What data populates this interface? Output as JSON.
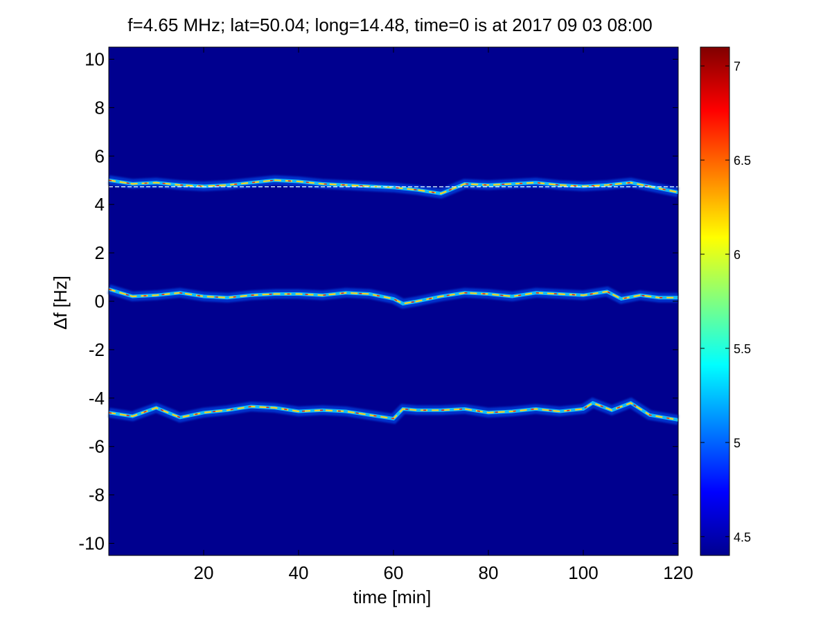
{
  "chart_data": {
    "type": "heatmap",
    "title": "f=4.65 MHz;  lat=50.04; long=14.48, time=0 is at 2017 09 03 08:00",
    "xlabel": "time [min]",
    "ylabel": "Δf [Hz]",
    "xlim": [
      0,
      120
    ],
    "ylim": [
      -10.5,
      10.5
    ],
    "x_ticks": [
      20,
      40,
      60,
      80,
      100,
      120
    ],
    "y_ticks": [
      -10,
      -8,
      -6,
      -4,
      -2,
      0,
      2,
      4,
      6,
      8,
      10
    ],
    "colorbar": {
      "range": [
        4.4,
        7.1
      ],
      "ticks": [
        4.5,
        5,
        5.5,
        6,
        6.5,
        7
      ],
      "colormap": "jet"
    },
    "background_value": 4.4,
    "grid": false,
    "traces": [
      {
        "label": "upper",
        "points": [
          [
            0,
            5.0
          ],
          [
            5,
            4.85
          ],
          [
            10,
            4.9
          ],
          [
            15,
            4.8
          ],
          [
            20,
            4.75
          ],
          [
            25,
            4.8
          ],
          [
            30,
            4.9
          ],
          [
            35,
            5.0
          ],
          [
            40,
            4.95
          ],
          [
            45,
            4.85
          ],
          [
            50,
            4.8
          ],
          [
            55,
            4.75
          ],
          [
            60,
            4.7
          ],
          [
            65,
            4.6
          ],
          [
            70,
            4.45
          ],
          [
            75,
            4.85
          ],
          [
            80,
            4.8
          ],
          [
            85,
            4.85
          ],
          [
            90,
            4.9
          ],
          [
            95,
            4.8
          ],
          [
            100,
            4.75
          ],
          [
            105,
            4.8
          ],
          [
            110,
            4.9
          ],
          [
            115,
            4.7
          ],
          [
            120,
            4.5
          ]
        ],
        "reference_line": 4.73
      },
      {
        "label": "middle",
        "points": [
          [
            0,
            0.5
          ],
          [
            5,
            0.2
          ],
          [
            10,
            0.25
          ],
          [
            15,
            0.35
          ],
          [
            20,
            0.2
          ],
          [
            25,
            0.15
          ],
          [
            30,
            0.25
          ],
          [
            35,
            0.3
          ],
          [
            40,
            0.3
          ],
          [
            45,
            0.25
          ],
          [
            50,
            0.35
          ],
          [
            55,
            0.3
          ],
          [
            60,
            0.1
          ],
          [
            62,
            -0.1
          ],
          [
            65,
            0.0
          ],
          [
            70,
            0.2
          ],
          [
            75,
            0.35
          ],
          [
            80,
            0.3
          ],
          [
            85,
            0.2
          ],
          [
            90,
            0.35
          ],
          [
            95,
            0.3
          ],
          [
            100,
            0.25
          ],
          [
            105,
            0.4
          ],
          [
            108,
            0.1
          ],
          [
            112,
            0.25
          ],
          [
            116,
            0.15
          ],
          [
            120,
            0.15
          ]
        ]
      },
      {
        "label": "lower",
        "points": [
          [
            0,
            -4.6
          ],
          [
            5,
            -4.75
          ],
          [
            10,
            -4.4
          ],
          [
            15,
            -4.8
          ],
          [
            20,
            -4.6
          ],
          [
            25,
            -4.5
          ],
          [
            30,
            -4.35
          ],
          [
            35,
            -4.4
          ],
          [
            40,
            -4.55
          ],
          [
            45,
            -4.5
          ],
          [
            50,
            -4.55
          ],
          [
            55,
            -4.7
          ],
          [
            60,
            -4.85
          ],
          [
            62,
            -4.45
          ],
          [
            65,
            -4.5
          ],
          [
            70,
            -4.5
          ],
          [
            75,
            -4.45
          ],
          [
            80,
            -4.6
          ],
          [
            85,
            -4.55
          ],
          [
            90,
            -4.45
          ],
          [
            95,
            -4.55
          ],
          [
            100,
            -4.45
          ],
          [
            102,
            -4.2
          ],
          [
            106,
            -4.5
          ],
          [
            110,
            -4.2
          ],
          [
            114,
            -4.7
          ],
          [
            120,
            -4.9
          ]
        ]
      }
    ]
  }
}
